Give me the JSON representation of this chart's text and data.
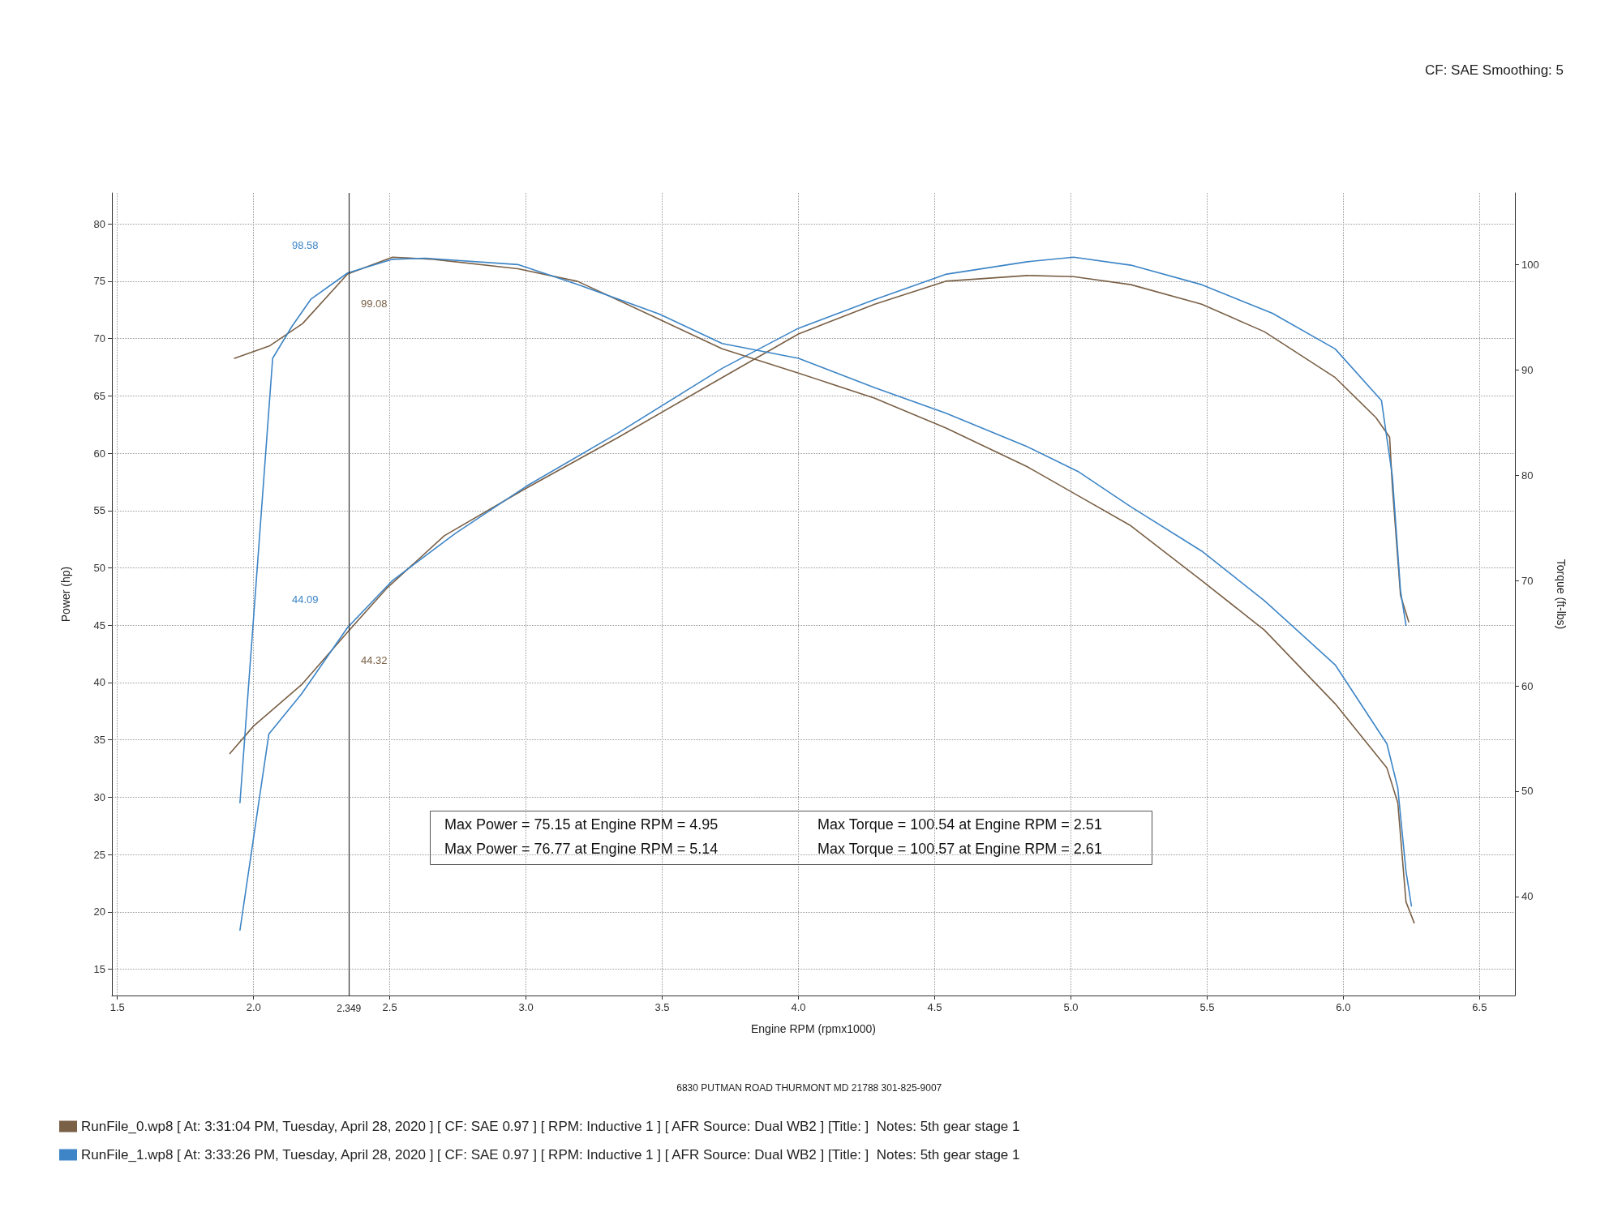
{
  "chart_data": {
    "type": "line",
    "xlabel": "Engine RPM (rpmx1000)",
    "ylabel": "Power (hp)",
    "y2label": "Torque (ft-lbs)",
    "xlim": [
      1.48,
      6.63
    ],
    "xticks": [
      1.5,
      {
        "value": 2,
        "label": "2.0"
      },
      2.5,
      {
        "value": 3,
        "label": "3.0"
      },
      3.5,
      {
        "value": 4,
        "label": "4.0"
      },
      4.5,
      {
        "value": 5,
        "label": "5.0"
      },
      5.5,
      {
        "value": 6,
        "label": "6.0"
      },
      6.5
    ],
    "ylim": [
      12.7,
      82.7
    ],
    "yticks": [
      15,
      20,
      25,
      30,
      35,
      40,
      45,
      50,
      55,
      60,
      65,
      70,
      75,
      80
    ],
    "y2lim": [
      30.6,
      106.8
    ],
    "y2ticks": [
      40,
      50,
      60,
      70,
      80,
      90,
      100
    ],
    "grid": true,
    "legend": "bottom",
    "marker": "none",
    "line_style": "solid",
    "series": [
      {
        "name": "RunFile_0.wp8 [ At: 3:31:04 PM, Tuesday, April 28, 2020 ] [ CF: SAE 0.97 ] [ RPM: Inductive 1 ] [ AFR Source: Dual WB2 ] [Title: ]  Notes: 5th gear stage 1",
        "color": "#7a6046",
        "x": [
          1.913,
          2.0,
          2.176,
          2.345,
          2.488,
          2.7,
          2.99,
          3.34,
          3.72,
          4.0,
          4.28,
          4.54,
          4.84,
          5.01,
          5.22,
          5.48,
          5.71,
          5.97,
          6.12,
          6.17,
          6.18,
          6.21,
          6.24
        ],
        "values": [
          33.8,
          36.2,
          39.8,
          44.4,
          48.2,
          52.8,
          56.8,
          61.4,
          66.6,
          70.4,
          73.0,
          75.0,
          75.5,
          75.4,
          74.7,
          73.0,
          70.6,
          66.6,
          63.1,
          61.4,
          57.1,
          47.6,
          45.3
        ]
      },
      {
        "name": "RunFile_1.wp8 [ At: 3:33:26 PM, Tuesday, April 28, 2020 ] [ CF: SAE 0.97 ] [ RPM: Inductive 1 ] [ AFR Source: Dual WB2 ] [Title: ]  Notes: 5th gear stage 1",
        "color": "#3d85c6",
        "x": [
          1.95,
          2.056,
          2.176,
          2.345,
          2.51,
          2.74,
          3.0,
          3.34,
          3.72,
          4.0,
          4.28,
          4.54,
          4.84,
          5.01,
          5.22,
          5.48,
          5.74,
          5.97,
          6.14,
          6.18,
          6.21,
          6.23
        ],
        "values": [
          18.4,
          35.5,
          39.0,
          44.8,
          48.9,
          53.0,
          57.1,
          61.8,
          67.4,
          70.9,
          73.4,
          75.6,
          76.7,
          77.1,
          76.4,
          74.7,
          72.2,
          69.1,
          64.6,
          58.0,
          48.0,
          45.0
        ]
      },
      {
        "color": "#7a6046",
        "axis": "y2",
        "x": [
          1.93,
          2.06,
          2.18,
          2.345,
          2.51,
          2.66,
          2.97,
          3.19,
          3.49,
          3.72,
          4.0,
          4.28,
          4.54,
          4.84,
          5.03,
          5.22,
          5.48,
          5.71,
          5.97,
          6.16,
          6.2,
          6.23,
          6.26
        ],
        "values": [
          91.1,
          92.3,
          94.4,
          99.1,
          100.7,
          100.5,
          99.6,
          98.4,
          94.8,
          92.0,
          89.7,
          87.3,
          84.5,
          80.8,
          78.0,
          75.2,
          70.0,
          65.3,
          58.3,
          52.2,
          48.9,
          39.5,
          37.5
        ]
      },
      {
        "color": "#3d85c6",
        "axis": "y2",
        "x": [
          1.95,
          2.07,
          2.14,
          2.21,
          2.345,
          2.51,
          2.63,
          2.97,
          3.19,
          3.49,
          3.72,
          4.0,
          4.28,
          4.54,
          4.84,
          5.03,
          5.22,
          5.48,
          5.71,
          5.97,
          6.16,
          6.2,
          6.23,
          6.25
        ],
        "values": [
          48.9,
          91.1,
          94.1,
          96.7,
          99.2,
          100.5,
          100.6,
          100.0,
          98.1,
          95.3,
          92.5,
          91.1,
          88.3,
          85.9,
          82.7,
          80.3,
          77.0,
          72.8,
          68.1,
          62.0,
          54.5,
          50.3,
          42.4,
          39.1
        ]
      }
    ],
    "ref_lines": [
      {
        "axis": "x",
        "value": 2.349,
        "label": "2.349",
        "color": "#333333"
      }
    ],
    "annotations": [
      "CF: SAE Smoothing: 5",
      "Max Power = 75.15 at Engine RPM = 4.95",
      "Max Torque = 100.54 at Engine RPM = 2.51",
      "Max Power = 76.77 at Engine RPM = 5.14",
      "Max Torque = 100.57 at Engine RPM = 2.61",
      "6830 PUTMAN ROAD THURMONT MD 21788 301-825-9007",
      "98.58",
      "99.08",
      "44.09",
      "44.32"
    ]
  }
}
